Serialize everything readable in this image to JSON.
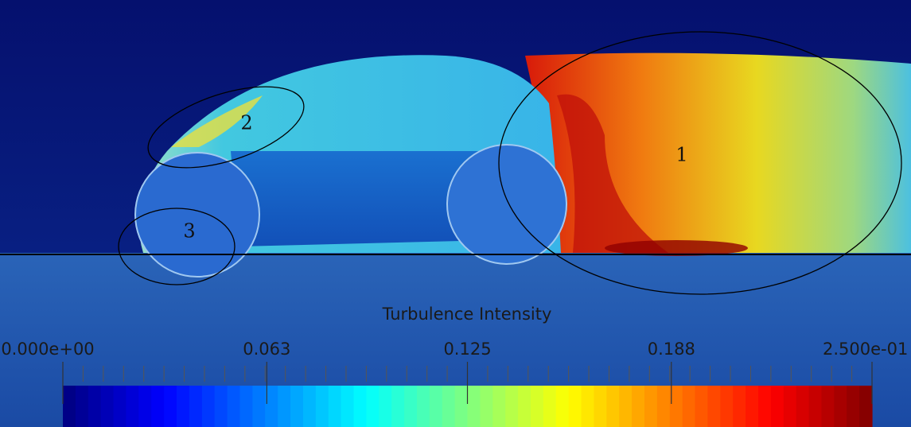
{
  "chart_data": {
    "type": "colorbar",
    "title": "Turbulence Intensity",
    "colormap": "jet",
    "range": [
      0,
      0.25
    ],
    "ticks": [
      {
        "value": 0,
        "label": "0.000e+00"
      },
      0.063,
      0.125,
      0.188,
      {
        "value": 0.25,
        "label": "2.500e-01"
      }
    ],
    "annotations": [
      "1",
      "2",
      "3"
    ]
  }
}
